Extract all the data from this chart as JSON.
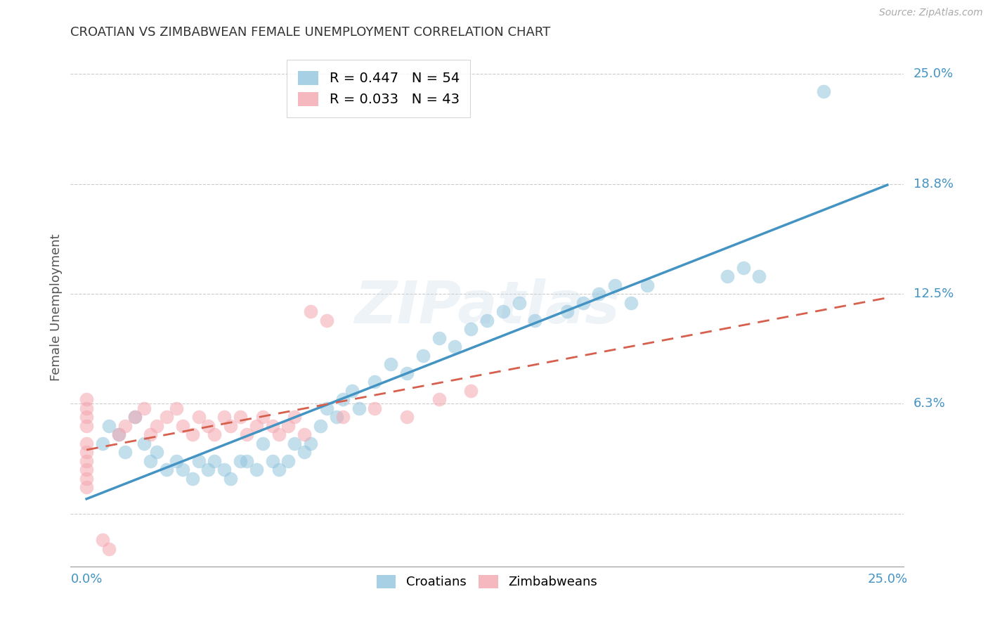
{
  "title": "CROATIAN VS ZIMBABWEAN FEMALE UNEMPLOYMENT CORRELATION CHART",
  "source": "Source: ZipAtlas.com",
  "ylabel": "Female Unemployment",
  "xlabel_croatians": "Croatians",
  "xlabel_zimbabweans": "Zimbabweans",
  "xlim": [
    -0.005,
    0.255
  ],
  "ylim": [
    -0.03,
    0.265
  ],
  "yticks": [
    0.0,
    0.0625,
    0.125,
    0.1875,
    0.25
  ],
  "ytick_labels": [
    "",
    "6.3%",
    "12.5%",
    "18.8%",
    "25.0%"
  ],
  "xtick_labels": [
    "0.0%",
    "25.0%"
  ],
  "xtick_pos": [
    0.0,
    0.25
  ],
  "croatians_R": 0.447,
  "croatians_N": 54,
  "zimbabweans_R": 0.033,
  "zimbabweans_N": 43,
  "color_blue": "#92c5de",
  "color_pink": "#f4a6b0",
  "color_blue_line": "#4393c3",
  "color_pink_line": "#d6604d",
  "color_blue_dark": "#4393c3",
  "watermark": "ZIPatlas",
  "croatians_x": [
    0.005,
    0.007,
    0.01,
    0.012,
    0.015,
    0.018,
    0.02,
    0.022,
    0.025,
    0.028,
    0.03,
    0.033,
    0.035,
    0.038,
    0.04,
    0.043,
    0.045,
    0.048,
    0.05,
    0.053,
    0.055,
    0.058,
    0.06,
    0.063,
    0.065,
    0.068,
    0.07,
    0.073,
    0.075,
    0.078,
    0.08,
    0.083,
    0.085,
    0.09,
    0.095,
    0.1,
    0.105,
    0.11,
    0.115,
    0.12,
    0.125,
    0.13,
    0.135,
    0.14,
    0.15,
    0.155,
    0.16,
    0.165,
    0.17,
    0.175,
    0.2,
    0.205,
    0.21,
    0.23
  ],
  "croatians_y": [
    0.04,
    0.05,
    0.045,
    0.035,
    0.055,
    0.04,
    0.03,
    0.035,
    0.025,
    0.03,
    0.025,
    0.02,
    0.03,
    0.025,
    0.03,
    0.025,
    0.02,
    0.03,
    0.03,
    0.025,
    0.04,
    0.03,
    0.025,
    0.03,
    0.04,
    0.035,
    0.04,
    0.05,
    0.06,
    0.055,
    0.065,
    0.07,
    0.06,
    0.075,
    0.085,
    0.08,
    0.09,
    0.1,
    0.095,
    0.105,
    0.11,
    0.115,
    0.12,
    0.11,
    0.115,
    0.12,
    0.125,
    0.13,
    0.12,
    0.13,
    0.135,
    0.14,
    0.135,
    0.24
  ],
  "zimbabweans_x": [
    0.0,
    0.0,
    0.0,
    0.0,
    0.0,
    0.0,
    0.0,
    0.0,
    0.0,
    0.0,
    0.005,
    0.007,
    0.01,
    0.012,
    0.015,
    0.018,
    0.02,
    0.022,
    0.025,
    0.028,
    0.03,
    0.033,
    0.035,
    0.038,
    0.04,
    0.043,
    0.045,
    0.048,
    0.05,
    0.053,
    0.055,
    0.058,
    0.06,
    0.063,
    0.065,
    0.068,
    0.07,
    0.075,
    0.08,
    0.09,
    0.1,
    0.11,
    0.12
  ],
  "zimbabweans_y": [
    0.02,
    0.03,
    0.04,
    0.05,
    0.055,
    0.06,
    0.065,
    0.035,
    0.025,
    0.015,
    -0.015,
    -0.02,
    0.045,
    0.05,
    0.055,
    0.06,
    0.045,
    0.05,
    0.055,
    0.06,
    0.05,
    0.045,
    0.055,
    0.05,
    0.045,
    0.055,
    0.05,
    0.055,
    0.045,
    0.05,
    0.055,
    0.05,
    0.045,
    0.05,
    0.055,
    0.045,
    0.115,
    0.11,
    0.055,
    0.06,
    0.055,
    0.065,
    0.07
  ]
}
